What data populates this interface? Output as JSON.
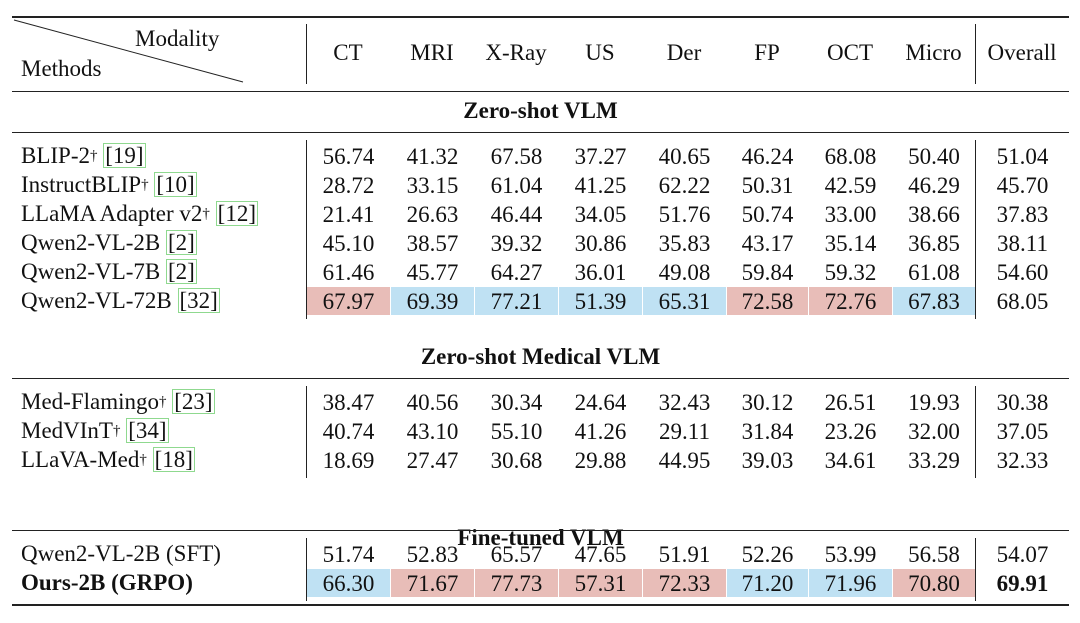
{
  "header": {
    "corner_top": "Modality",
    "corner_bottom": "Methods",
    "columns": [
      "CT",
      "MRI",
      "X-Ray",
      "US",
      "Der",
      "FP",
      "OCT",
      "Micro",
      "Overall"
    ]
  },
  "highlight_colors": {
    "red": "#e8bdb8",
    "blue": "#bfe1f3"
  },
  "sections": [
    {
      "title": "Zero-shot VLM",
      "rows": [
        {
          "name": "BLIP-2",
          "dagger": "†",
          "ref": "[19]",
          "values": [
            "56.74",
            "41.32",
            "67.58",
            "37.27",
            "40.65",
            "46.24",
            "68.08",
            "50.40",
            "51.04"
          ]
        },
        {
          "name": "InstructBLIP",
          "dagger": "†",
          "ref": "[10]",
          "values": [
            "28.72",
            "33.15",
            "61.04",
            "41.25",
            "62.22",
            "50.31",
            "42.59",
            "46.29",
            "45.70"
          ]
        },
        {
          "name": "LLaMA Adapter v2",
          "dagger": "†",
          "ref": "[12]",
          "values": [
            "21.41",
            "26.63",
            "46.44",
            "34.05",
            "51.76",
            "50.74",
            "33.00",
            "38.66",
            "37.83"
          ]
        },
        {
          "name": "Qwen2-VL-2B",
          "dagger": "",
          "ref": "[2]",
          "values": [
            "45.10",
            "38.57",
            "39.32",
            "30.86",
            "35.83",
            "43.17",
            "35.14",
            "36.85",
            "38.11"
          ]
        },
        {
          "name": "Qwen2-VL-7B",
          "dagger": "",
          "ref": "[2]",
          "values": [
            "61.46",
            "45.77",
            "64.27",
            "36.01",
            "49.08",
            "59.84",
            "59.32",
            "61.08",
            "54.60"
          ]
        },
        {
          "name": "Qwen2-VL-72B",
          "dagger": "",
          "ref": "[32]",
          "values": [
            "67.97",
            "69.39",
            "77.21",
            "51.39",
            "65.31",
            "72.58",
            "72.76",
            "67.83",
            "68.05"
          ],
          "highlight": [
            "red",
            "blue",
            "blue",
            "blue",
            "blue",
            "red",
            "red",
            "blue",
            ""
          ]
        }
      ]
    },
    {
      "title": "Zero-shot Medical VLM",
      "rows": [
        {
          "name": "Med-Flamingo",
          "dagger": "†",
          "ref": "[23]",
          "values": [
            "38.47",
            "40.56",
            "30.34",
            "24.64",
            "32.43",
            "30.12",
            "26.51",
            "19.93",
            "30.38"
          ]
        },
        {
          "name": "MedVInT",
          "dagger": "†",
          "ref": "[34]",
          "values": [
            "40.74",
            "43.10",
            "55.10",
            "41.26",
            "29.11",
            "31.84",
            "23.26",
            "32.00",
            "37.05"
          ]
        },
        {
          "name": "LLaVA-Med",
          "dagger": "†",
          "ref": "[18]",
          "values": [
            "18.69",
            "27.47",
            "30.68",
            "29.88",
            "44.95",
            "39.03",
            "34.61",
            "33.29",
            "32.33"
          ]
        }
      ]
    },
    {
      "title": "Fine-tuned VLM",
      "rows": [
        {
          "name": "Qwen2-VL-2B (SFT)",
          "dagger": "",
          "ref": "",
          "values": [
            "51.74",
            "52.83",
            "65.57",
            "47.65",
            "51.91",
            "52.26",
            "53.99",
            "56.58",
            "54.07"
          ]
        },
        {
          "name": "Ours-2B (GRPO)",
          "dagger": "",
          "ref": "",
          "bold": true,
          "values": [
            "66.30",
            "71.67",
            "77.73",
            "57.31",
            "72.33",
            "71.20",
            "71.96",
            "70.80",
            "69.91"
          ],
          "highlight": [
            "blue",
            "red",
            "red",
            "red",
            "red",
            "blue",
            "blue",
            "red",
            ""
          ],
          "bold_values": [
            8
          ]
        }
      ]
    }
  ]
}
